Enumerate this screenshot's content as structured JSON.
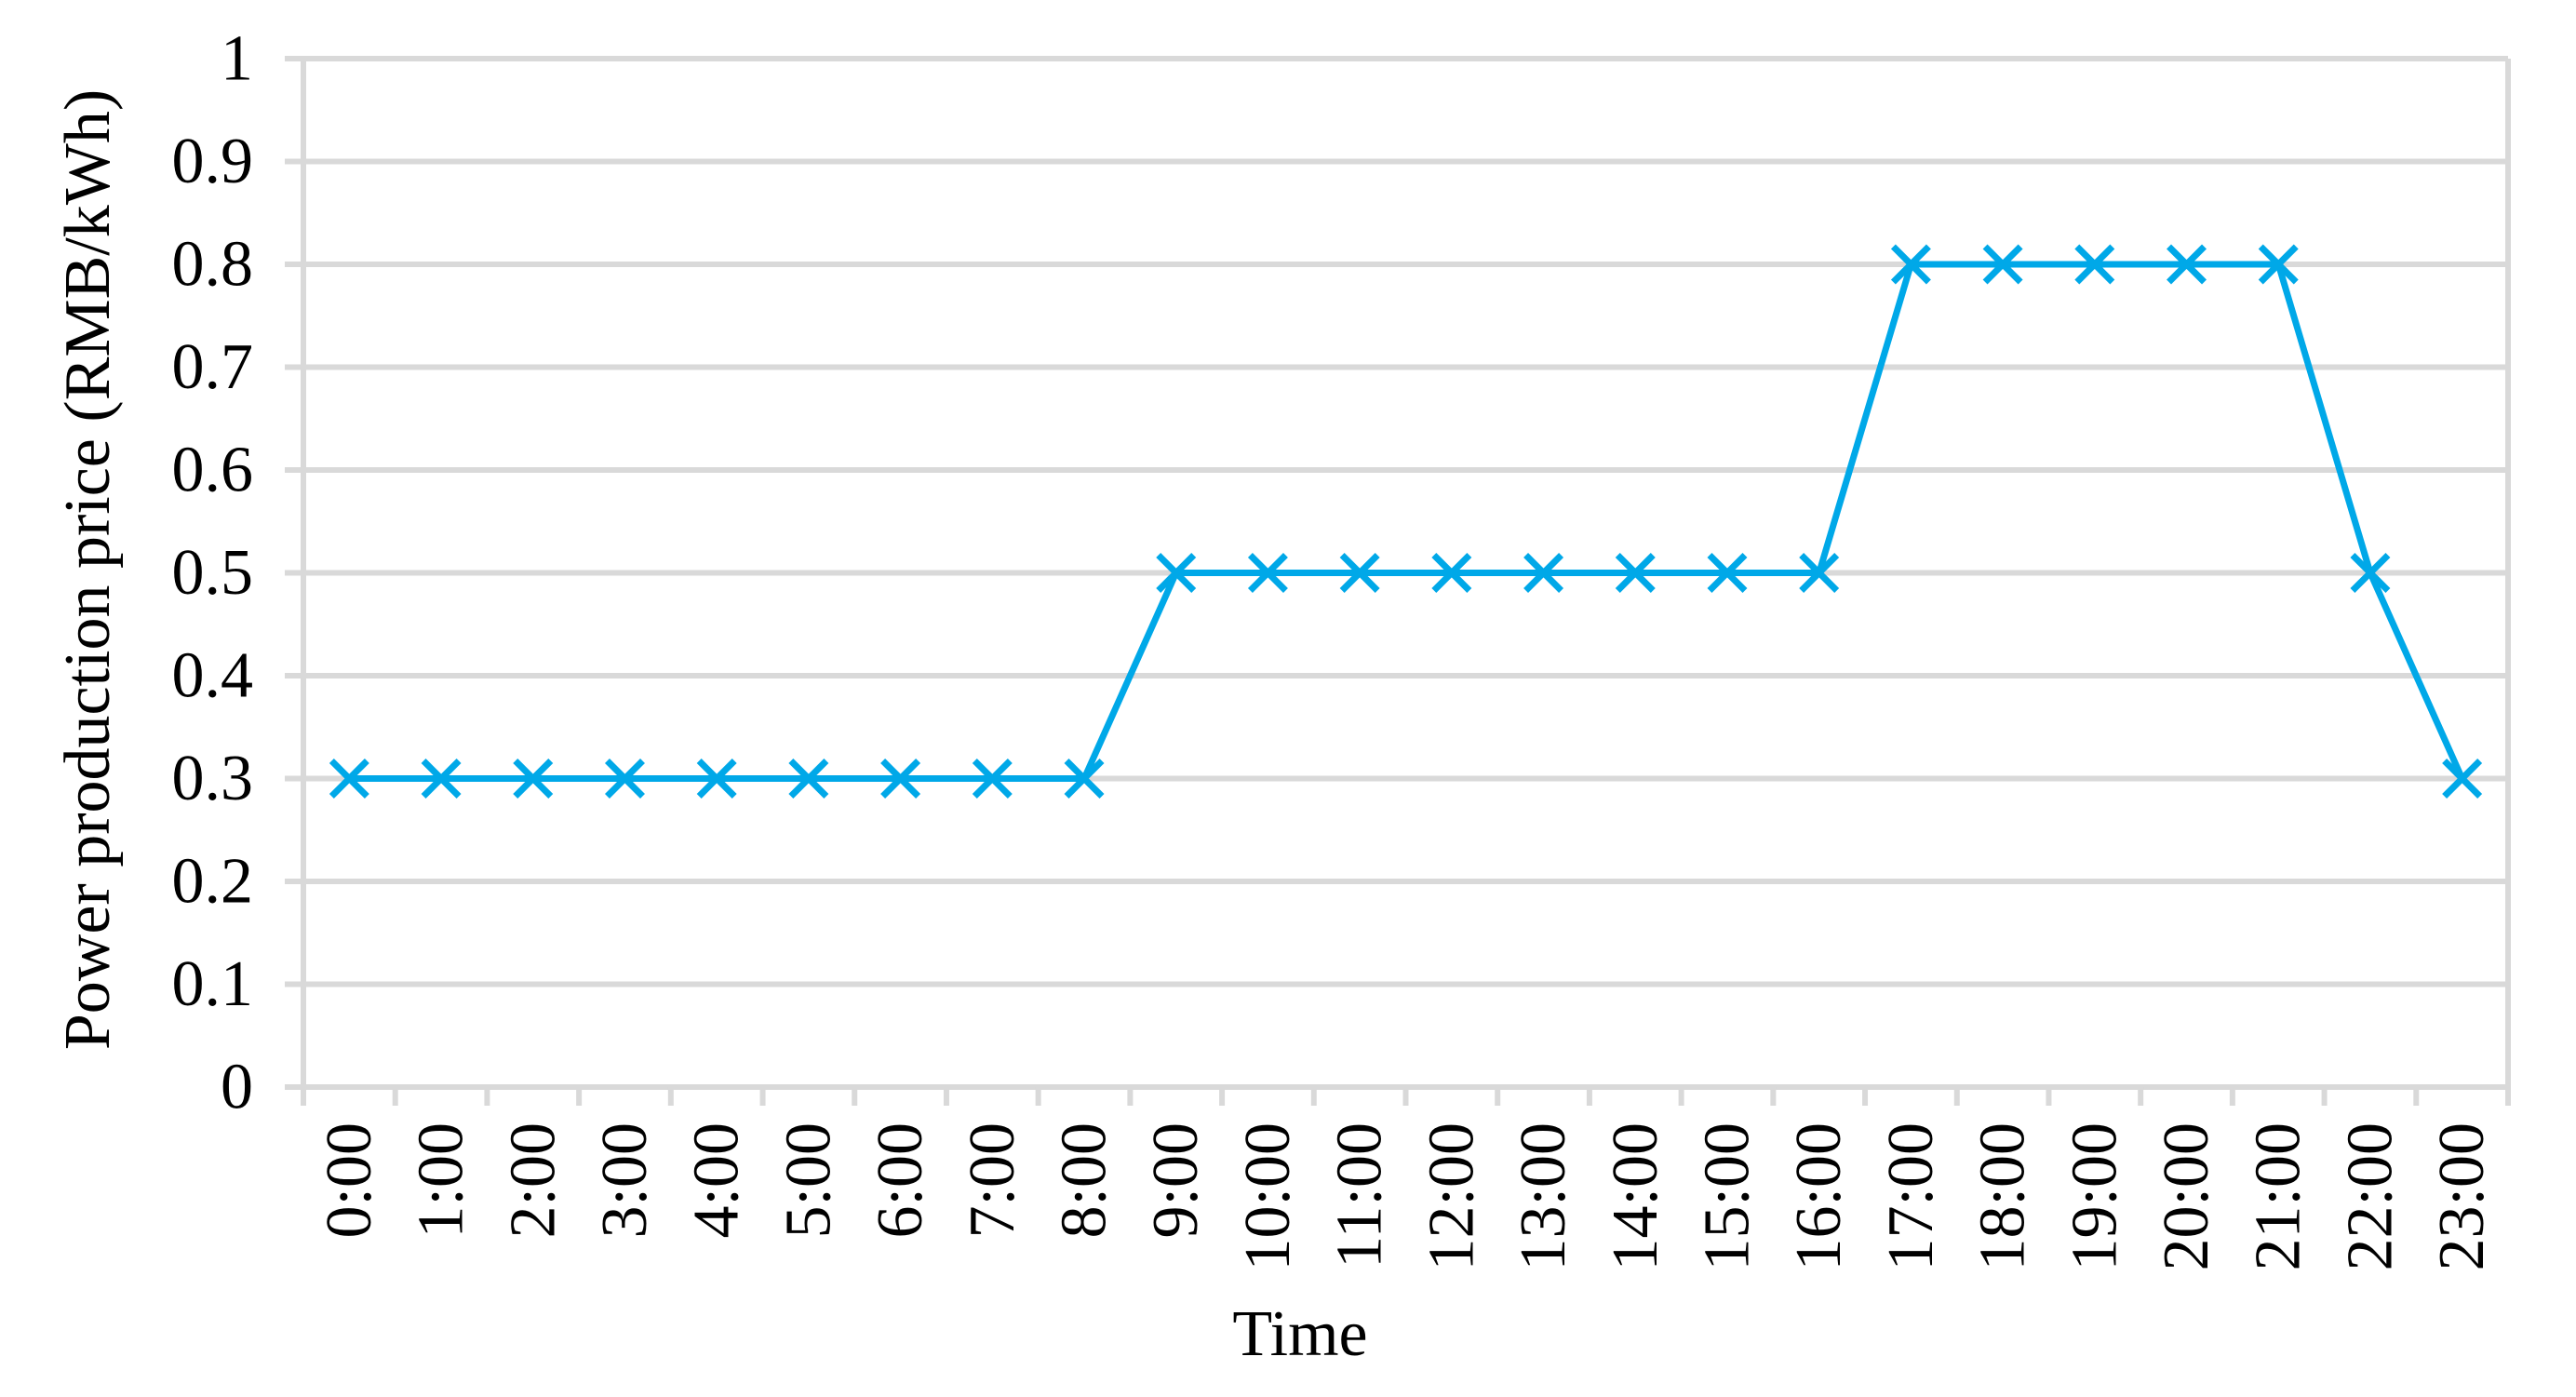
{
  "chart_data": {
    "type": "line",
    "title": "",
    "xlabel": "Time",
    "ylabel": "Power production price (RMB/kWh)",
    "categories": [
      "0:00",
      "1:00",
      "2:00",
      "3:00",
      "4:00",
      "5:00",
      "6:00",
      "7:00",
      "8:00",
      "9:00",
      "10:00",
      "11:00",
      "12:00",
      "13:00",
      "14:00",
      "15:00",
      "16:00",
      "17:00",
      "18:00",
      "19:00",
      "20:00",
      "21:00",
      "22:00",
      "23:00"
    ],
    "values": [
      0.3,
      0.3,
      0.3,
      0.3,
      0.3,
      0.3,
      0.3,
      0.3,
      0.3,
      0.5,
      0.5,
      0.5,
      0.5,
      0.5,
      0.5,
      0.5,
      0.5,
      0.8,
      0.8,
      0.8,
      0.8,
      0.8,
      0.5,
      0.3
    ],
    "ylim": [
      0,
      1
    ],
    "y_ticks": [
      "0",
      "0.1",
      "0.2",
      "0.3",
      "0.4",
      "0.5",
      "0.6",
      "0.7",
      "0.8",
      "0.9",
      "1"
    ],
    "grid": "horizontal",
    "legend": "none",
    "marker": "x",
    "colors": {
      "series": "#00A8E8",
      "gridline": "#D9D9D9",
      "text": "#000000",
      "background": "#FFFFFF"
    }
  }
}
